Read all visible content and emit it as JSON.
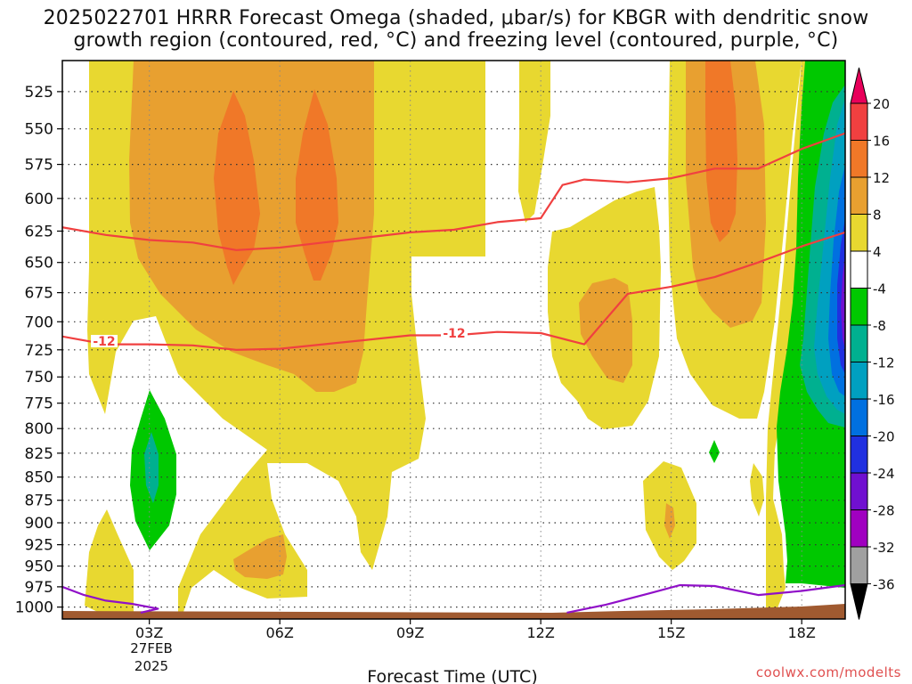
{
  "title_lines": [
    "2025022701 HRRR Forecast Omega (shaded, μbar/s) for KBGR with dendritic snow",
    "growth region (contoured, red, °C) and freezing level (contoured, purple, °C)"
  ],
  "watermark": "coolwx.com/modelts",
  "chart_data": {
    "type": "contour",
    "xlabel": "Forecast Time (UTC)",
    "x_ticks": [
      "03Z",
      "06Z",
      "09Z",
      "12Z",
      "15Z",
      "18Z"
    ],
    "x_tick_hours": [
      3,
      6,
      9,
      12,
      15,
      18
    ],
    "x_date_label": [
      "27FEB",
      "2025"
    ],
    "x_range_hours": [
      1,
      19
    ],
    "y_ticks": [
      525,
      550,
      575,
      600,
      625,
      650,
      675,
      700,
      725,
      750,
      775,
      800,
      825,
      850,
      875,
      900,
      925,
      950,
      975,
      1000
    ],
    "y_range_hpa": [
      505,
      1015
    ],
    "y_scale": "log-pressure",
    "grid": "dotted",
    "colorbar": {
      "labels": [
        "20",
        "16",
        "12",
        "8",
        "4",
        "-4",
        "-8",
        "-12",
        "-16",
        "-20",
        "-24",
        "-28",
        "-32",
        "-36"
      ],
      "colors": [
        "#e8005a",
        "#f04040",
        "#f07828",
        "#e8a030",
        "#e8d830",
        "#ffffff",
        "#00c800",
        "#00b090",
        "#00a0c0",
        "#0070e0",
        "#2030e0",
        "#7010d0",
        "#a000c0",
        "#a0a0a0",
        "#000000"
      ]
    },
    "dgz_contour_label": "-12",
    "dgz_top_minus12": [
      {
        "x": 1.0,
        "p": 622
      },
      {
        "x": 2.0,
        "p": 628
      },
      {
        "x": 3.0,
        "p": 632
      },
      {
        "x": 4.0,
        "p": 634
      },
      {
        "x": 5.0,
        "p": 640
      },
      {
        "x": 6.0,
        "p": 638
      },
      {
        "x": 7.0,
        "p": 634
      },
      {
        "x": 8.0,
        "p": 630
      },
      {
        "x": 9.0,
        "p": 626
      },
      {
        "x": 10.0,
        "p": 624
      },
      {
        "x": 11.0,
        "p": 618
      },
      {
        "x": 12.0,
        "p": 615
      },
      {
        "x": 12.5,
        "p": 590
      },
      {
        "x": 13.0,
        "p": 586
      },
      {
        "x": 14.0,
        "p": 588
      },
      {
        "x": 15.0,
        "p": 585
      },
      {
        "x": 16.0,
        "p": 578
      },
      {
        "x": 17.0,
        "p": 578
      },
      {
        "x": 18.0,
        "p": 564
      },
      {
        "x": 19.0,
        "p": 553
      }
    ],
    "dgz_bottom_minus12": [
      {
        "x": 1.0,
        "p": 713
      },
      {
        "x": 2.0,
        "p": 720
      },
      {
        "x": 3.0,
        "p": 720
      },
      {
        "x": 4.0,
        "p": 721
      },
      {
        "x": 5.0,
        "p": 725
      },
      {
        "x": 6.0,
        "p": 724
      },
      {
        "x": 7.0,
        "p": 720
      },
      {
        "x": 8.0,
        "p": 716
      },
      {
        "x": 9.0,
        "p": 712
      },
      {
        "x": 10.0,
        "p": 712
      },
      {
        "x": 11.0,
        "p": 709
      },
      {
        "x": 12.0,
        "p": 710
      },
      {
        "x": 13.0,
        "p": 720
      },
      {
        "x": 14.0,
        "p": 676
      },
      {
        "x": 15.0,
        "p": 670
      },
      {
        "x": 16.0,
        "p": 662
      },
      {
        "x": 17.0,
        "p": 650
      },
      {
        "x": 18.0,
        "p": 637
      },
      {
        "x": 19.0,
        "p": 626
      }
    ],
    "freezing_level_left": [
      {
        "x": 1.0,
        "p": 975
      },
      {
        "x": 1.5,
        "p": 985
      },
      {
        "x": 2.0,
        "p": 992
      },
      {
        "x": 2.6,
        "p": 996
      },
      {
        "x": 3.2,
        "p": 1002
      },
      {
        "x": 2.8,
        "p": 1007
      }
    ],
    "freezing_level_right": [
      {
        "x": 12.6,
        "p": 1007
      },
      {
        "x": 13.5,
        "p": 997
      },
      {
        "x": 14.5,
        "p": 983
      },
      {
        "x": 15.2,
        "p": 973
      },
      {
        "x": 16.0,
        "p": 974
      },
      {
        "x": 17.0,
        "p": 985
      },
      {
        "x": 18.0,
        "p": 980
      },
      {
        "x": 19.0,
        "p": 973
      }
    ]
  }
}
